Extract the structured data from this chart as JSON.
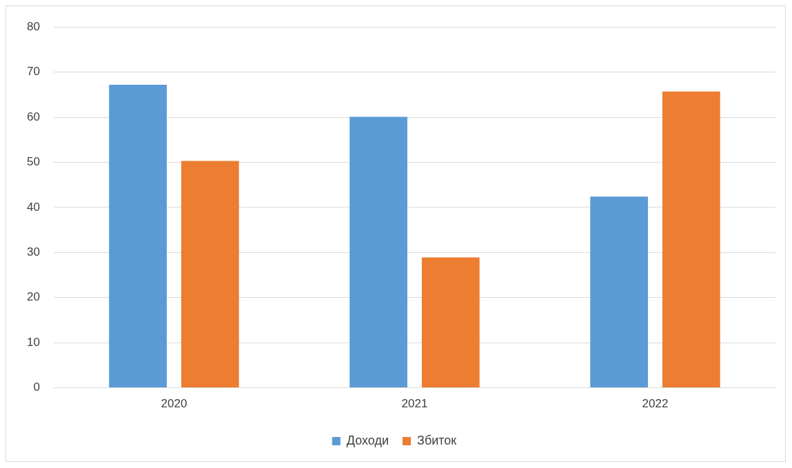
{
  "chart_data": {
    "type": "bar",
    "categories": [
      "2020",
      "2021",
      "2022"
    ],
    "series": [
      {
        "name": "Доходи",
        "color": "#5b9bd5",
        "values": [
          67.2,
          60.1,
          42.4
        ]
      },
      {
        "name": "Збиток",
        "color": "#ed7d31",
        "values": [
          50.3,
          28.9,
          65.7
        ]
      }
    ],
    "ylim": [
      0,
      80
    ],
    "yticks": [
      0,
      10,
      20,
      30,
      40,
      50,
      60,
      70,
      80
    ],
    "grid": "y",
    "legend": "bottom"
  }
}
